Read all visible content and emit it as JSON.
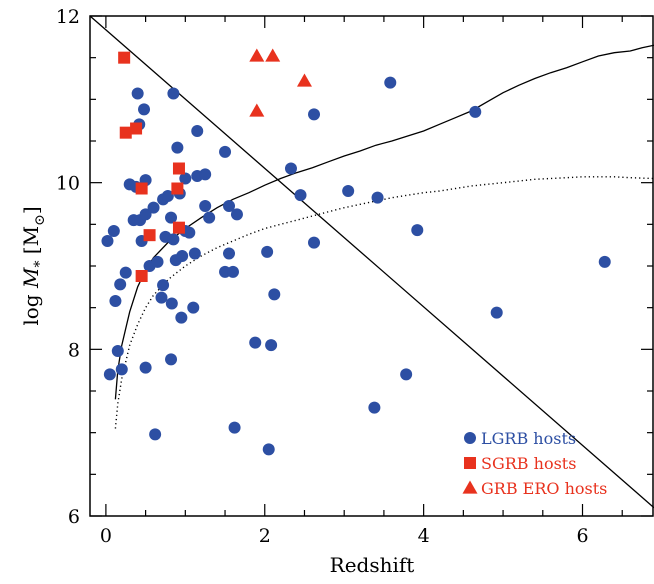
{
  "chart_data": {
    "type": "scatter",
    "xlabel": "Redshift",
    "ylabel": "log M_* [M_⊙]",
    "ylabel_parts": {
      "prefix": "log ",
      "symbol": "M",
      "subscript": "*",
      "unit_open": " [M",
      "unit_sub": "⊙",
      "unit_close": "]"
    },
    "xlim": [
      -0.2,
      6.9
    ],
    "ylim": [
      6.0,
      12.0
    ],
    "x_ticks": [
      0,
      2,
      4,
      6
    ],
    "x_tick_labels": [
      "0",
      "2",
      "4",
      "6"
    ],
    "y_ticks": [
      6,
      8,
      10,
      12
    ],
    "y_tick_labels": [
      "6",
      "8",
      "10",
      "12"
    ],
    "legend_position": "bottom-right",
    "colors": {
      "lgrb": "#2d4fa3",
      "sgrb": "#e8321e",
      "ero": "#e8321e",
      "lgrb_text": "#2d4fa3",
      "sgrb_text": "#e8321e",
      "ero_text": "#e8321e"
    },
    "series": [
      {
        "name": "LGRB hosts",
        "marker": "circle",
        "points": [
          [
            0.02,
            9.3
          ],
          [
            0.05,
            7.7
          ],
          [
            0.1,
            9.42
          ],
          [
            0.12,
            8.58
          ],
          [
            0.15,
            7.98
          ],
          [
            0.18,
            8.78
          ],
          [
            0.2,
            7.76
          ],
          [
            0.25,
            8.92
          ],
          [
            0.3,
            9.98
          ],
          [
            0.35,
            9.55
          ],
          [
            0.38,
            9.95
          ],
          [
            0.4,
            11.07
          ],
          [
            0.42,
            10.7
          ],
          [
            0.43,
            9.55
          ],
          [
            0.45,
            9.3
          ],
          [
            0.48,
            10.88
          ],
          [
            0.5,
            7.78
          ],
          [
            0.5,
            9.62
          ],
          [
            0.5,
            10.03
          ],
          [
            0.55,
            9.0
          ],
          [
            0.6,
            9.7
          ],
          [
            0.62,
            6.98
          ],
          [
            0.65,
            9.05
          ],
          [
            0.7,
            8.62
          ],
          [
            0.72,
            8.77
          ],
          [
            0.72,
            9.8
          ],
          [
            0.75,
            9.35
          ],
          [
            0.78,
            9.84
          ],
          [
            0.82,
            9.58
          ],
          [
            0.82,
            7.88
          ],
          [
            0.83,
            8.55
          ],
          [
            0.85,
            11.07
          ],
          [
            0.85,
            9.32
          ],
          [
            0.88,
            9.07
          ],
          [
            0.9,
            10.42
          ],
          [
            0.93,
            9.87
          ],
          [
            0.95,
            8.38
          ],
          [
            0.96,
            9.12
          ],
          [
            1.0,
            10.05
          ],
          [
            1.0,
            9.42
          ],
          [
            1.05,
            9.4
          ],
          [
            1.1,
            8.5
          ],
          [
            1.12,
            9.15
          ],
          [
            1.15,
            10.62
          ],
          [
            1.15,
            10.08
          ],
          [
            1.25,
            10.1
          ],
          [
            1.3,
            9.58
          ],
          [
            1.25,
            9.72
          ],
          [
            1.5,
            10.37
          ],
          [
            1.5,
            8.93
          ],
          [
            1.55,
            9.72
          ],
          [
            1.55,
            9.15
          ],
          [
            1.6,
            8.93
          ],
          [
            1.65,
            9.62
          ],
          [
            1.62,
            7.06
          ],
          [
            1.88,
            8.08
          ],
          [
            2.03,
            9.17
          ],
          [
            2.05,
            6.8
          ],
          [
            2.08,
            8.05
          ],
          [
            2.12,
            8.66
          ],
          [
            2.33,
            10.17
          ],
          [
            2.45,
            9.85
          ],
          [
            2.62,
            10.82
          ],
          [
            2.62,
            9.28
          ],
          [
            3.05,
            9.9
          ],
          [
            3.38,
            7.3
          ],
          [
            3.42,
            9.82
          ],
          [
            3.58,
            11.2
          ],
          [
            3.78,
            7.7
          ],
          [
            3.92,
            9.43
          ],
          [
            4.65,
            10.85
          ],
          [
            4.92,
            8.44
          ],
          [
            6.28,
            9.05
          ]
        ]
      },
      {
        "name": "SGRB hosts",
        "marker": "square",
        "points": [
          [
            0.23,
            11.5
          ],
          [
            0.25,
            10.6
          ],
          [
            0.38,
            10.65
          ],
          [
            0.45,
            8.88
          ],
          [
            0.45,
            9.93
          ],
          [
            0.55,
            9.37
          ],
          [
            0.9,
            9.93
          ],
          [
            0.92,
            10.17
          ],
          [
            0.92,
            9.46
          ]
        ]
      },
      {
        "name": "GRB ERO hosts",
        "marker": "triangle",
        "points": [
          [
            1.9,
            11.52
          ],
          [
            2.1,
            11.52
          ],
          [
            2.5,
            11.22
          ],
          [
            1.9,
            10.86
          ]
        ]
      }
    ],
    "lines": [
      {
        "style": "solid",
        "points": [
          [
            -0.2,
            12.0
          ],
          [
            6.9,
            6.1
          ]
        ]
      },
      {
        "style": "solid",
        "points": [
          [
            0.12,
            7.4
          ],
          [
            0.15,
            7.75
          ],
          [
            0.2,
            8.05
          ],
          [
            0.3,
            8.45
          ],
          [
            0.4,
            8.75
          ],
          [
            0.5,
            8.95
          ],
          [
            0.6,
            9.1
          ],
          [
            0.8,
            9.3
          ],
          [
            1.0,
            9.45
          ],
          [
            1.2,
            9.58
          ],
          [
            1.4,
            9.7
          ],
          [
            1.6,
            9.8
          ],
          [
            1.8,
            9.88
          ],
          [
            2.0,
            9.97
          ],
          [
            2.2,
            10.05
          ],
          [
            2.4,
            10.12
          ],
          [
            2.6,
            10.18
          ],
          [
            2.8,
            10.25
          ],
          [
            3.0,
            10.32
          ],
          [
            3.2,
            10.38
          ],
          [
            3.4,
            10.45
          ],
          [
            3.6,
            10.5
          ],
          [
            3.8,
            10.56
          ],
          [
            4.0,
            10.62
          ],
          [
            4.2,
            10.7
          ],
          [
            4.4,
            10.78
          ],
          [
            4.6,
            10.86
          ],
          [
            4.8,
            10.97
          ],
          [
            5.0,
            11.08
          ],
          [
            5.2,
            11.17
          ],
          [
            5.4,
            11.25
          ],
          [
            5.6,
            11.32
          ],
          [
            5.8,
            11.38
          ],
          [
            6.0,
            11.45
          ],
          [
            6.2,
            11.52
          ],
          [
            6.4,
            11.56
          ],
          [
            6.6,
            11.58
          ],
          [
            6.75,
            11.62
          ],
          [
            6.9,
            11.65
          ]
        ]
      },
      {
        "style": "dotted",
        "points": [
          [
            0.12,
            7.05
          ],
          [
            0.15,
            7.35
          ],
          [
            0.2,
            7.65
          ],
          [
            0.3,
            8.05
          ],
          [
            0.4,
            8.3
          ],
          [
            0.5,
            8.5
          ],
          [
            0.6,
            8.65
          ],
          [
            0.8,
            8.85
          ],
          [
            1.0,
            9.0
          ],
          [
            1.2,
            9.12
          ],
          [
            1.4,
            9.22
          ],
          [
            1.6,
            9.3
          ],
          [
            1.8,
            9.38
          ],
          [
            2.0,
            9.45
          ],
          [
            2.2,
            9.5
          ],
          [
            2.4,
            9.55
          ],
          [
            2.6,
            9.6
          ],
          [
            2.8,
            9.65
          ],
          [
            3.0,
            9.7
          ],
          [
            3.2,
            9.74
          ],
          [
            3.4,
            9.78
          ],
          [
            3.6,
            9.82
          ],
          [
            3.8,
            9.85
          ],
          [
            4.0,
            9.88
          ],
          [
            4.2,
            9.9
          ],
          [
            4.4,
            9.93
          ],
          [
            4.6,
            9.96
          ],
          [
            4.8,
            9.98
          ],
          [
            5.0,
            10.0
          ],
          [
            5.2,
            10.02
          ],
          [
            5.4,
            10.04
          ],
          [
            5.6,
            10.05
          ],
          [
            5.8,
            10.06
          ],
          [
            6.0,
            10.07
          ],
          [
            6.2,
            10.07
          ],
          [
            6.4,
            10.07
          ],
          [
            6.6,
            10.06
          ],
          [
            6.9,
            10.05
          ]
        ]
      }
    ]
  }
}
